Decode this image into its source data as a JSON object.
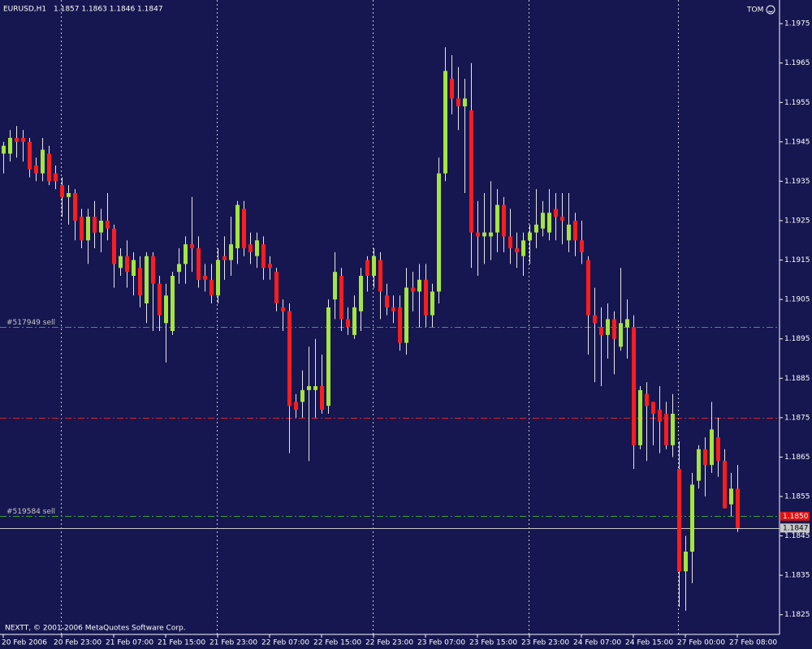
{
  "chart_data": {
    "type": "candlestick",
    "symbol": "EURUSD,H1",
    "ohlc_text": "1.1857 1.1863 1.1846 1.1847",
    "account": "TOM",
    "footer": "NEXTT, © 2001-2006 MetaQuotes Software Corp.",
    "categories": [
      "20 Feb 2006",
      null,
      null,
      null,
      null,
      null,
      null,
      null,
      null,
      "20 Feb 23:00",
      null,
      null,
      null,
      null,
      null,
      null,
      null,
      "21 Feb 07:00",
      null,
      null,
      null,
      null,
      null,
      null,
      null,
      "21 Feb 15:00",
      null,
      null,
      null,
      null,
      null,
      null,
      null,
      "21 Feb 23:00",
      null,
      null,
      null,
      null,
      null,
      null,
      null,
      "22 Feb 07:00",
      null,
      null,
      null,
      null,
      null,
      null,
      null,
      "22 Feb 15:00",
      null,
      null,
      null,
      null,
      null,
      null,
      null,
      "22 Feb 23:00",
      null,
      null,
      null,
      null,
      null,
      null,
      null,
      "23 Feb 07:00",
      null,
      null,
      null,
      null,
      null,
      null,
      null,
      "23 Feb 15:00",
      null,
      null,
      null,
      null,
      null,
      null,
      null,
      "23 Feb 23:00",
      null,
      null,
      null,
      null,
      null,
      null,
      null,
      "24 Feb 07:00",
      null,
      null,
      null,
      null,
      null,
      null,
      null,
      "24 Feb 15:00",
      null,
      null,
      null,
      null,
      null,
      null,
      null,
      "27 Feb 00:00",
      null,
      null,
      null,
      null,
      null,
      null,
      null,
      "27 Feb 08:00"
    ],
    "open": [
      1.1942,
      1.1942,
      1.1946,
      1.1946,
      1.1945,
      1.1939,
      1.1937,
      1.1942,
      1.1937,
      1.1934,
      1.1931,
      1.1932,
      1.1926,
      1.192,
      1.1926,
      1.1922,
      1.1925,
      1.1923,
      1.1913,
      1.1916,
      1.1911,
      1.1913,
      1.1904,
      1.1916,
      1.1909,
      1.1899,
      1.1897,
      1.1912,
      1.1914,
      1.1919,
      1.1918,
      1.1911,
      1.191,
      1.1906,
      1.1916,
      1.1915,
      1.1918,
      1.1928,
      1.1919,
      1.1916,
      1.1919,
      1.1914,
      1.1912,
      1.1903,
      1.1902,
      1.1879,
      1.1879,
      1.1882,
      1.1882,
      1.1883,
      1.1878,
      1.1905,
      1.1911,
      1.19,
      1.1896,
      1.1902,
      1.1915,
      1.1911,
      1.1915,
      1.1906,
      1.1903,
      1.1903,
      1.1894,
      1.1908,
      1.1907,
      1.191,
      1.1901,
      1.1907,
      1.1937,
      1.1961,
      1.1956,
      1.1954,
      1.1953,
      1.1922,
      1.1921,
      1.1921,
      1.1922,
      1.1929,
      1.1921,
      1.1918,
      1.1916,
      1.192,
      1.1922,
      1.1923,
      1.1922,
      1.1928,
      1.1926,
      1.192,
      1.1925,
      1.192,
      1.1915,
      1.1901,
      1.1898,
      1.1896,
      1.19,
      1.1893,
      1.1898,
      1.1898,
      1.1868,
      1.1881,
      1.1879,
      1.1877,
      1.1876,
      1.1868,
      1.1862,
      1.1836,
      1.1841,
      1.1859,
      1.1867,
      1.1863,
      1.187,
      1.1864,
      1.1853,
      1.1857
    ],
    "high": [
      1.1945,
      1.1948,
      1.1949,
      1.1948,
      1.1946,
      1.1941,
      1.1946,
      1.1944,
      1.1939,
      1.1936,
      1.1934,
      1.1933,
      1.1928,
      1.1928,
      1.193,
      1.1928,
      1.1932,
      1.1924,
      1.1918,
      1.192,
      1.1917,
      1.1916,
      1.1917,
      1.1917,
      1.1911,
      1.1909,
      1.1912,
      1.1918,
      1.1921,
      1.1931,
      1.1921,
      1.1914,
      1.1914,
      1.1918,
      1.1921,
      1.1926,
      1.193,
      1.193,
      1.1922,
      1.1922,
      1.1921,
      1.1916,
      1.1913,
      1.1905,
      1.1904,
      1.1881,
      1.1887,
      1.1893,
      1.1895,
      1.1891,
      1.1905,
      1.1917,
      1.1913,
      1.1903,
      1.1906,
      1.1913,
      1.1916,
      1.1918,
      1.1917,
      1.1909,
      1.1906,
      1.1906,
      1.1913,
      1.1912,
      1.1914,
      1.1914,
      1.1909,
      1.1941,
      1.1969,
      1.1967,
      1.1964,
      1.1961,
      1.1965,
      1.193,
      1.1932,
      1.1935,
      1.1933,
      1.1931,
      1.1928,
      1.1922,
      1.1922,
      1.1924,
      1.1933,
      1.193,
      1.1933,
      1.1932,
      1.1932,
      1.1932,
      1.1927,
      1.1925,
      1.1916,
      1.1908,
      1.1903,
      1.1904,
      1.1902,
      1.1913,
      1.1905,
      1.1901,
      1.1883,
      1.1884,
      1.1879,
      1.1883,
      1.1879,
      1.1881,
      1.1869,
      1.1845,
      1.1861,
      1.1868,
      1.187,
      1.1879,
      1.1875,
      1.1867,
      1.1861,
      1.1863
    ],
    "low": [
      1.1937,
      1.194,
      1.1941,
      1.194,
      1.1936,
      1.1935,
      1.1935,
      1.1934,
      1.1933,
      1.1926,
      1.1924,
      1.192,
      1.1918,
      1.1914,
      1.1918,
      1.1917,
      1.192,
      1.1908,
      1.1911,
      1.1908,
      1.1906,
      1.1903,
      1.1899,
      1.1897,
      1.1897,
      1.1889,
      1.1896,
      1.1909,
      1.1909,
      1.1912,
      1.1908,
      1.1907,
      1.1904,
      1.1904,
      1.191,
      1.1911,
      1.1914,
      1.1916,
      1.1914,
      1.1913,
      1.191,
      1.191,
      1.1902,
      1.1897,
      1.1866,
      1.1875,
      1.1875,
      1.1864,
      1.1875,
      1.1876,
      1.1876,
      1.19,
      1.1897,
      1.1896,
      1.1895,
      1.1897,
      1.1907,
      1.1908,
      1.19,
      1.1901,
      1.1899,
      1.1892,
      1.1891,
      1.1902,
      1.1898,
      1.1898,
      1.1898,
      1.1904,
      1.1935,
      1.1952,
      1.1948,
      1.1932,
      1.1913,
      1.1911,
      1.1914,
      1.1915,
      1.1917,
      1.1917,
      1.1914,
      1.1913,
      1.1911,
      1.1914,
      1.1918,
      1.1921,
      1.192,
      1.192,
      1.1919,
      1.1917,
      1.1916,
      1.1914,
      1.1891,
      1.1884,
      1.1883,
      1.189,
      1.1886,
      1.1892,
      1.189,
      1.1862,
      1.1867,
      1.1864,
      1.1868,
      1.1866,
      1.1867,
      1.1865,
      1.1827,
      1.1826,
      1.1833,
      1.1857,
      1.1855,
      1.1861,
      1.186,
      1.1852,
      1.185,
      1.1846
    ],
    "close": [
      1.1944,
      1.1946,
      1.1945,
      1.1945,
      1.1938,
      1.1937,
      1.1943,
      1.1935,
      1.1935,
      1.1931,
      1.1932,
      1.1925,
      1.192,
      1.1926,
      1.1922,
      1.1925,
      1.1923,
      1.1914,
      1.1916,
      1.1912,
      1.1915,
      1.1906,
      1.1916,
      1.1909,
      1.1901,
      1.1906,
      1.1911,
      1.1914,
      1.1919,
      1.1918,
      1.191,
      1.191,
      1.1906,
      1.1915,
      1.1915,
      1.1919,
      1.1929,
      1.1918,
      1.1917,
      1.192,
      1.1913,
      1.1913,
      1.1904,
      1.1902,
      1.1878,
      1.1877,
      1.1882,
      1.1883,
      1.1883,
      1.1877,
      1.1903,
      1.1912,
      1.19,
      1.1898,
      1.1903,
      1.1911,
      1.1911,
      1.1916,
      1.1907,
      1.1903,
      1.1902,
      1.1894,
      1.1908,
      1.1907,
      1.191,
      1.1901,
      1.1907,
      1.1937,
      1.1963,
      1.1956,
      1.1954,
      1.1956,
      1.1922,
      1.1921,
      1.1922,
      1.1922,
      1.1929,
      1.1921,
      1.1918,
      1.1917,
      1.192,
      1.1922,
      1.1924,
      1.1927,
      1.1927,
      1.1926,
      1.1925,
      1.1924,
      1.192,
      1.1917,
      1.1901,
      1.1899,
      1.1896,
      1.19,
      1.1895,
      1.1899,
      1.19,
      1.1868,
      1.1882,
      1.1878,
      1.1876,
      1.1874,
      1.1868,
      1.1876,
      1.1836,
      1.1841,
      1.1858,
      1.1867,
      1.1863,
      1.1872,
      1.1864,
      1.1852,
      1.1857,
      1.1847
    ],
    "up_color": "#a4e63c",
    "down_color": "#ff1c1c",
    "wick_color": "#e8e8e8",
    "ylim": [
      1.182,
      1.1981
    ],
    "yticks": [
      1.1975,
      1.1965,
      1.1955,
      1.1945,
      1.1935,
      1.1925,
      1.1915,
      1.1905,
      1.1895,
      1.1885,
      1.1875,
      1.1865,
      1.1855,
      1.1845,
      1.1835,
      1.1825
    ],
    "separators": [
      9,
      33,
      57,
      81,
      104
    ],
    "lines": [
      {
        "label": "#517949 sell",
        "price": 1.1898,
        "color": "#3aa23a"
      },
      {
        "price": 1.1875,
        "color": "#d42a2a"
      },
      {
        "label": "#519584 sell",
        "price": 1.185,
        "color": "#3aa23a"
      }
    ],
    "price_tags": [
      {
        "value": 1.185,
        "label": "1.1850",
        "color": "#e01010",
        "text_color": "#ffffff",
        "line": false
      },
      {
        "value": 1.1847,
        "label": "1.1847",
        "color": "#c8c8c8",
        "text_color": "#000000",
        "line": true
      }
    ]
  }
}
